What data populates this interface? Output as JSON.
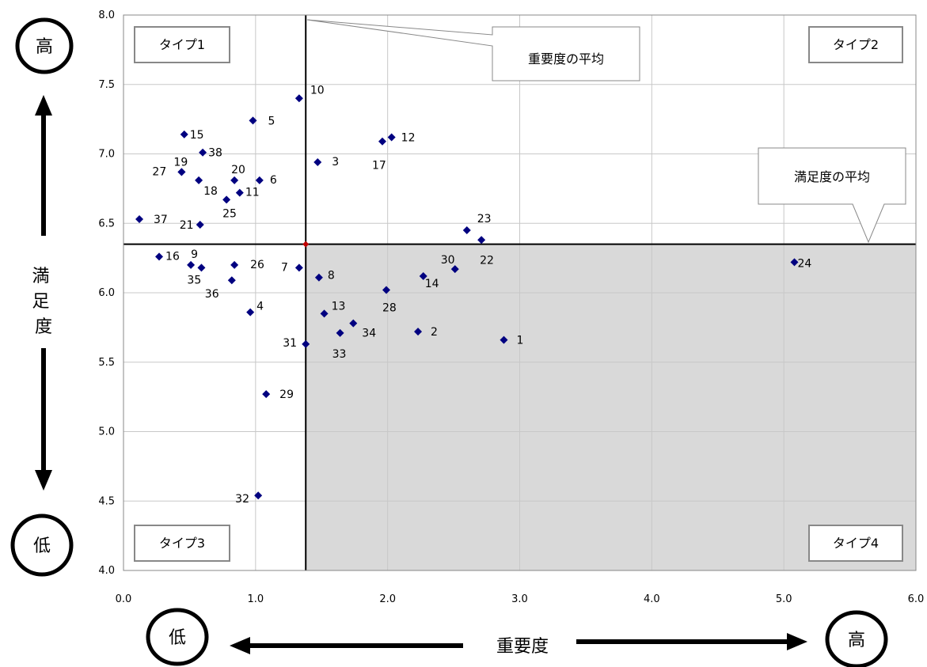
{
  "chart_data": {
    "type": "scatter",
    "xlabel": "重要度",
    "ylabel": "満足度",
    "xlim": [
      0,
      6
    ],
    "ylim": [
      4,
      8
    ],
    "x_ticks": [
      "0.0",
      "1.0",
      "2.0",
      "3.0",
      "4.0",
      "5.0",
      "6.0"
    ],
    "y_ticks": [
      "4.0",
      "4.5",
      "5.0",
      "5.5",
      "6.0",
      "6.5",
      "7.0",
      "7.5",
      "8.0"
    ],
    "grid": true,
    "marker_color": "#000080",
    "shaded_quadrant_color": "#d9d9d9",
    "mean_x": 1.38,
    "mean_y": 6.35,
    "mean_point_color": "#c00000",
    "quadrants": [
      {
        "label": "タイプ1",
        "position": "top-left"
      },
      {
        "label": "タイプ2",
        "position": "top-right"
      },
      {
        "label": "タイプ3",
        "position": "bottom-left"
      },
      {
        "label": "タイプ4",
        "position": "bottom-right"
      }
    ],
    "callouts": {
      "importance_mean": "重要度の平均",
      "satisfaction_mean": "満足度の平均"
    },
    "axis_ends": {
      "y_high": "高",
      "y_low": "低",
      "x_low": "低",
      "x_high": "高"
    },
    "points": [
      {
        "label": "1",
        "x": 2.88,
        "y": 5.66
      },
      {
        "label": "2",
        "x": 2.23,
        "y": 5.72
      },
      {
        "label": "3",
        "x": 1.47,
        "y": 6.94
      },
      {
        "label": "4",
        "x": 0.96,
        "y": 5.86
      },
      {
        "label": "5",
        "x": 0.98,
        "y": 7.24
      },
      {
        "label": "6",
        "x": 1.03,
        "y": 6.81
      },
      {
        "label": "7",
        "x": 1.33,
        "y": 6.18
      },
      {
        "label": "8",
        "x": 1.48,
        "y": 6.11
      },
      {
        "label": "9",
        "x": 0.51,
        "y": 6.2
      },
      {
        "label": "10",
        "x": 1.33,
        "y": 7.4
      },
      {
        "label": "11",
        "x": 0.88,
        "y": 6.72
      },
      {
        "label": "12",
        "x": 2.03,
        "y": 7.12
      },
      {
        "label": "13",
        "x": 1.52,
        "y": 5.85
      },
      {
        "label": "14",
        "x": 2.27,
        "y": 6.12
      },
      {
        "label": "15",
        "x": 0.46,
        "y": 7.14
      },
      {
        "label": "16",
        "x": 0.27,
        "y": 6.26
      },
      {
        "label": "17",
        "x": 1.96,
        "y": 7.09
      },
      {
        "label": "18",
        "x": 0.57,
        "y": 6.81
      },
      {
        "label": "19",
        "x": 0.44,
        "y": 6.87
      },
      {
        "label": "20",
        "x": 0.84,
        "y": 6.81
      },
      {
        "label": "21",
        "x": 0.58,
        "y": 6.49
      },
      {
        "label": "22",
        "x": 2.71,
        "y": 6.38
      },
      {
        "label": "23",
        "x": 2.6,
        "y": 6.45
      },
      {
        "label": "24",
        "x": 5.08,
        "y": 6.22
      },
      {
        "label": "25",
        "x": 0.78,
        "y": 6.67
      },
      {
        "label": "26",
        "x": 0.84,
        "y": 6.2
      },
      {
        "label": "27",
        "x": 0.44,
        "y": 6.87
      },
      {
        "label": "28",
        "x": 1.99,
        "y": 6.02
      },
      {
        "label": "29",
        "x": 1.08,
        "y": 5.27
      },
      {
        "label": "30",
        "x": 2.51,
        "y": 6.17
      },
      {
        "label": "31",
        "x": 1.38,
        "y": 5.63
      },
      {
        "label": "32",
        "x": 1.02,
        "y": 4.54
      },
      {
        "label": "33",
        "x": 1.64,
        "y": 5.71
      },
      {
        "label": "34",
        "x": 1.74,
        "y": 5.78
      },
      {
        "label": "35",
        "x": 0.59,
        "y": 6.18
      },
      {
        "label": "36",
        "x": 0.82,
        "y": 6.09
      },
      {
        "label": "37",
        "x": 0.12,
        "y": 6.53
      },
      {
        "label": "38",
        "x": 0.6,
        "y": 7.01
      }
    ]
  }
}
